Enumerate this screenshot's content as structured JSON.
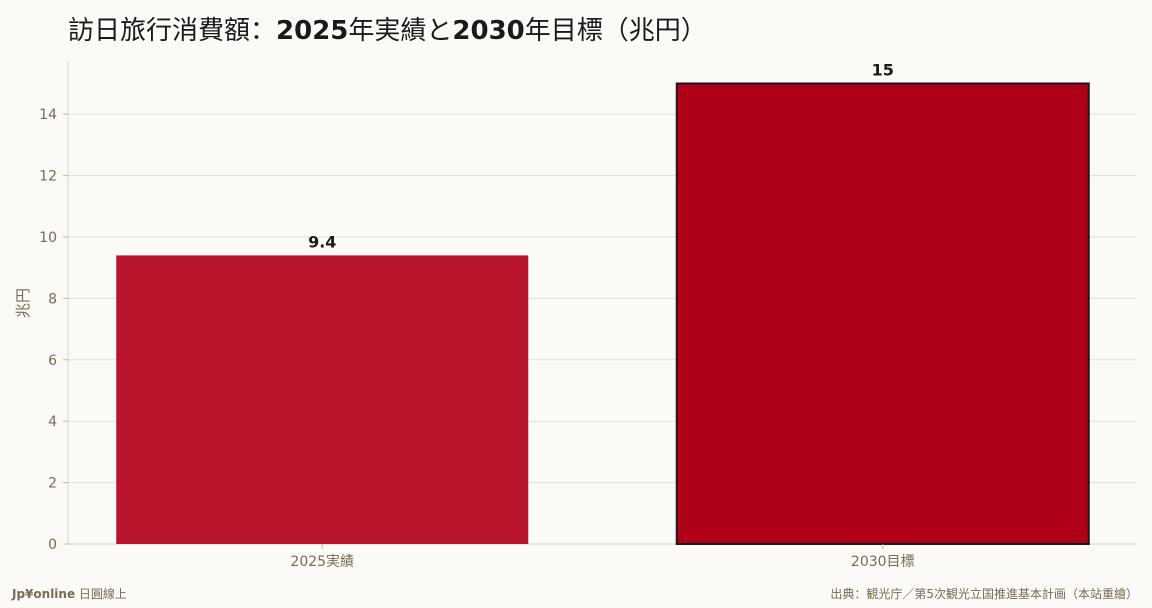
{
  "title": {
    "part1": "訪日旅行消費額：",
    "part2": "2025",
    "part3": "年実績と",
    "part4": "2030",
    "part5": "年目標（兆円）"
  },
  "footer": {
    "brand": "Jp¥online",
    "tagline": " 日圓線上",
    "source": "出典：観光庁／第5次観光立国推進基本計画（本站重繪）"
  },
  "colors": {
    "bar_actual": "#b8142b",
    "bar_target": "#b00018",
    "bar_target_border": "#1a1a1a",
    "axis_text": "#7a6a55",
    "grid": "#e3dfd6"
  },
  "chart_data": {
    "type": "bar",
    "categories": [
      "2025実績",
      "2030目標"
    ],
    "values": [
      9.4,
      15
    ],
    "data_labels": [
      "9.4",
      "15"
    ],
    "title": "訪日旅行消費額：2025年実績と2030年目標（兆円）",
    "xlabel": "",
    "ylabel": "兆円",
    "ylim": [
      0,
      15.7
    ],
    "yticks": [
      0,
      2,
      4,
      6,
      8,
      10,
      12,
      14
    ],
    "grid": true,
    "legend": "none"
  }
}
